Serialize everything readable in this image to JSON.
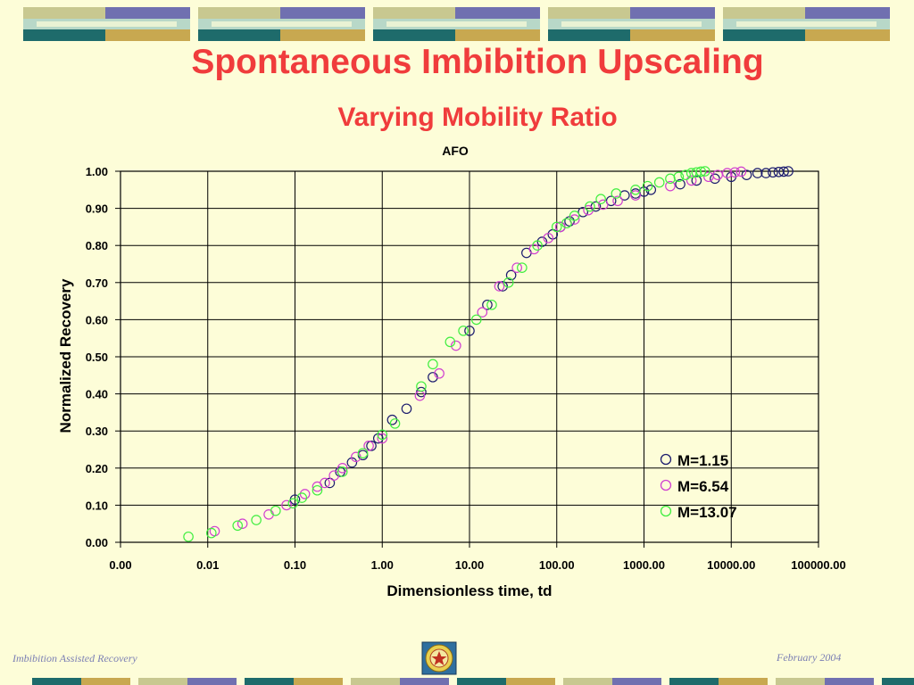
{
  "slide": {
    "title": "Spontaneous Imbibition Upscaling",
    "subtitle": "Varying Mobility Ratio",
    "footer_left": "Imbibition Assisted Recovery",
    "footer_right": "February 2004",
    "logo_icon": "university-seal-icon",
    "colors": {
      "title": "#f03c3c",
      "background": "#fdfdd8",
      "footer_text": "#7b7fb4",
      "deco_teal": "#1e6b6b",
      "deco_olive": "#c8c890",
      "deco_purple": "#7070b0",
      "deco_mint": "#b8d8c8",
      "deco_gold": "#c8a850"
    }
  },
  "chart_data": {
    "type": "scatter",
    "title": "AFO",
    "xlabel": "Dimensionless time, td",
    "ylabel": "Normalized Recovery",
    "x_scale": "log",
    "xlim": [
      0.001,
      100000
    ],
    "ylim": [
      0,
      1
    ],
    "grid": true,
    "legend_position": "bottom-right",
    "x_ticks": [
      0.001,
      0.01,
      0.1,
      1,
      10,
      100,
      1000,
      10000,
      100000
    ],
    "x_tick_labels": [
      "0.00",
      "0.01",
      "0.10",
      "1.00",
      "10.00",
      "100.00",
      "1000.00",
      "10000.00",
      "100000.00"
    ],
    "y_ticks": [
      0,
      0.1,
      0.2,
      0.3,
      0.4,
      0.5,
      0.6,
      0.7,
      0.8,
      0.9,
      1.0
    ],
    "y_tick_labels": [
      "0.00",
      "0.10",
      "0.20",
      "0.30",
      "0.40",
      "0.50",
      "0.60",
      "0.70",
      "0.80",
      "0.90",
      "1.00"
    ],
    "series": [
      {
        "name": "M=1.15",
        "color": "#1c1c6e",
        "x": [
          0.1,
          0.25,
          0.33,
          0.45,
          0.6,
          0.75,
          0.9,
          1.3,
          1.9,
          2.8,
          3.8,
          10,
          16,
          24,
          30,
          45,
          68,
          90,
          110,
          140,
          200,
          280,
          420,
          600,
          800,
          1000,
          1200,
          2600,
          4000,
          6500,
          10000,
          15000,
          20000,
          25000,
          30000,
          35000,
          40000,
          45000
        ],
        "y": [
          0.115,
          0.16,
          0.19,
          0.215,
          0.235,
          0.26,
          0.28,
          0.33,
          0.36,
          0.405,
          0.445,
          0.57,
          0.64,
          0.69,
          0.72,
          0.78,
          0.81,
          0.83,
          0.85,
          0.865,
          0.89,
          0.905,
          0.92,
          0.935,
          0.94,
          0.945,
          0.95,
          0.965,
          0.975,
          0.98,
          0.985,
          0.99,
          0.995,
          0.995,
          0.997,
          0.998,
          0.999,
          1.0
        ]
      },
      {
        "name": "M=6.54",
        "color": "#d040d0",
        "x": [
          0.012,
          0.025,
          0.05,
          0.08,
          0.13,
          0.18,
          0.22,
          0.28,
          0.35,
          0.5,
          0.7,
          1.0,
          2.7,
          4.5,
          7,
          14,
          22,
          35,
          55,
          80,
          110,
          160,
          230,
          340,
          500,
          800,
          2000,
          3500,
          5500,
          7000,
          9000,
          11000,
          13000
        ],
        "y": [
          0.03,
          0.05,
          0.075,
          0.1,
          0.13,
          0.15,
          0.16,
          0.18,
          0.2,
          0.23,
          0.26,
          0.28,
          0.395,
          0.455,
          0.53,
          0.62,
          0.69,
          0.74,
          0.79,
          0.82,
          0.85,
          0.87,
          0.895,
          0.91,
          0.92,
          0.935,
          0.96,
          0.975,
          0.985,
          0.99,
          0.995,
          0.997,
          0.999
        ]
      },
      {
        "name": "M=13.07",
        "color": "#40ee40",
        "x": [
          0.006,
          0.011,
          0.022,
          0.036,
          0.06,
          0.095,
          0.12,
          0.18,
          0.35,
          0.6,
          1.0,
          1.4,
          2.8,
          3.8,
          6,
          8.5,
          12,
          18,
          28,
          40,
          60,
          100,
          130,
          160,
          240,
          320,
          480,
          800,
          1100,
          1500,
          2000,
          2500,
          3000,
          3500,
          4000,
          4500,
          5000
        ],
        "y": [
          0.015,
          0.025,
          0.045,
          0.06,
          0.085,
          0.105,
          0.12,
          0.14,
          0.19,
          0.24,
          0.29,
          0.32,
          0.42,
          0.48,
          0.54,
          0.57,
          0.6,
          0.64,
          0.7,
          0.74,
          0.8,
          0.85,
          0.86,
          0.88,
          0.905,
          0.925,
          0.94,
          0.95,
          0.96,
          0.97,
          0.98,
          0.985,
          0.99,
          0.995,
          0.997,
          0.999,
          1.0
        ]
      }
    ]
  }
}
